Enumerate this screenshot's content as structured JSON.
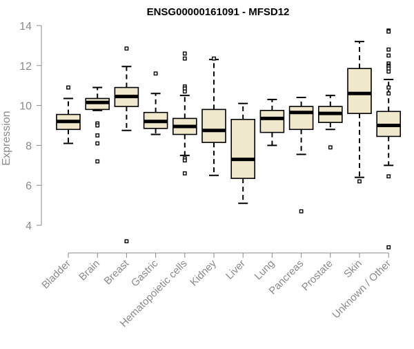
{
  "chart_data": {
    "type": "boxplot",
    "title": "ENSG00000161091 - MFSD12",
    "ylabel": "Expression",
    "xlabel": "",
    "ylim": [
      2.5,
      14.3
    ],
    "yticks": [
      4,
      6,
      8,
      10,
      12,
      14
    ],
    "grid": false,
    "colors": {
      "box_fill": "#efe8cc",
      "stroke": "#000000",
      "axis": "#8a8a8a"
    },
    "categories": [
      "Bladder",
      "Brain",
      "Breast",
      "Gastric",
      "Hematopoietic cells",
      "Kidney",
      "Liver",
      "Lung",
      "Pancreas",
      "Prostate",
      "Skin",
      "Unknown / Other"
    ],
    "boxes": [
      {
        "category": "Bladder",
        "whisker_low": 8.1,
        "q1": 8.8,
        "median": 9.2,
        "q3": 9.55,
        "whisker_high": 10.35,
        "outliers": [
          10.9
        ]
      },
      {
        "category": "Brain",
        "whisker_low": 9.75,
        "q1": 9.8,
        "median": 10.15,
        "q3": 10.35,
        "whisker_high": 10.9,
        "outliers": [
          9.1,
          9.0,
          8.5,
          8.1,
          7.2
        ]
      },
      {
        "category": "Breast",
        "whisker_low": 8.75,
        "q1": 9.95,
        "median": 10.45,
        "q3": 10.9,
        "whisker_high": 11.95,
        "outliers": [
          12.85,
          3.2
        ]
      },
      {
        "category": "Gastric",
        "whisker_low": 8.55,
        "q1": 8.85,
        "median": 9.2,
        "q3": 9.65,
        "whisker_high": 10.6,
        "outliers": [
          11.6
        ]
      },
      {
        "category": "Hematopoietic cells",
        "whisker_low": 7.5,
        "q1": 8.55,
        "median": 8.95,
        "q3": 9.35,
        "whisker_high": 10.5,
        "outliers": [
          12.6,
          12.35,
          10.95,
          10.85,
          10.7,
          7.35,
          7.25,
          6.6
        ]
      },
      {
        "category": "Kidney",
        "whisker_low": 6.5,
        "q1": 8.15,
        "median": 8.75,
        "q3": 9.8,
        "whisker_high": 12.3,
        "outliers": [
          12.35
        ]
      },
      {
        "category": "Liver",
        "whisker_low": 5.1,
        "q1": 6.35,
        "median": 7.3,
        "q3": 9.3,
        "whisker_high": 10.1,
        "outliers": []
      },
      {
        "category": "Lung",
        "whisker_low": 8.0,
        "q1": 8.65,
        "median": 9.35,
        "q3": 9.75,
        "whisker_high": 10.3,
        "outliers": []
      },
      {
        "category": "Pancreas",
        "whisker_low": 7.55,
        "q1": 8.8,
        "median": 9.65,
        "q3": 9.95,
        "whisker_high": 10.4,
        "outliers": [
          4.7
        ]
      },
      {
        "category": "Prostate",
        "whisker_low": 8.8,
        "q1": 9.15,
        "median": 9.6,
        "q3": 9.95,
        "whisker_high": 10.5,
        "outliers": [
          7.9
        ]
      },
      {
        "category": "Skin",
        "whisker_low": 6.4,
        "q1": 9.6,
        "median": 10.6,
        "q3": 11.85,
        "whisker_high": 13.2,
        "outliers": [
          6.2
        ]
      },
      {
        "category": "Unknown / Other",
        "whisker_low": 7.0,
        "q1": 8.45,
        "median": 9.0,
        "q3": 9.7,
        "whisker_high": 11.3,
        "outliers": [
          13.75,
          13.7,
          12.8,
          12.5,
          12.1,
          12.0,
          11.95,
          11.85,
          11.7,
          10.9,
          10.6,
          6.45,
          2.9
        ]
      }
    ]
  }
}
